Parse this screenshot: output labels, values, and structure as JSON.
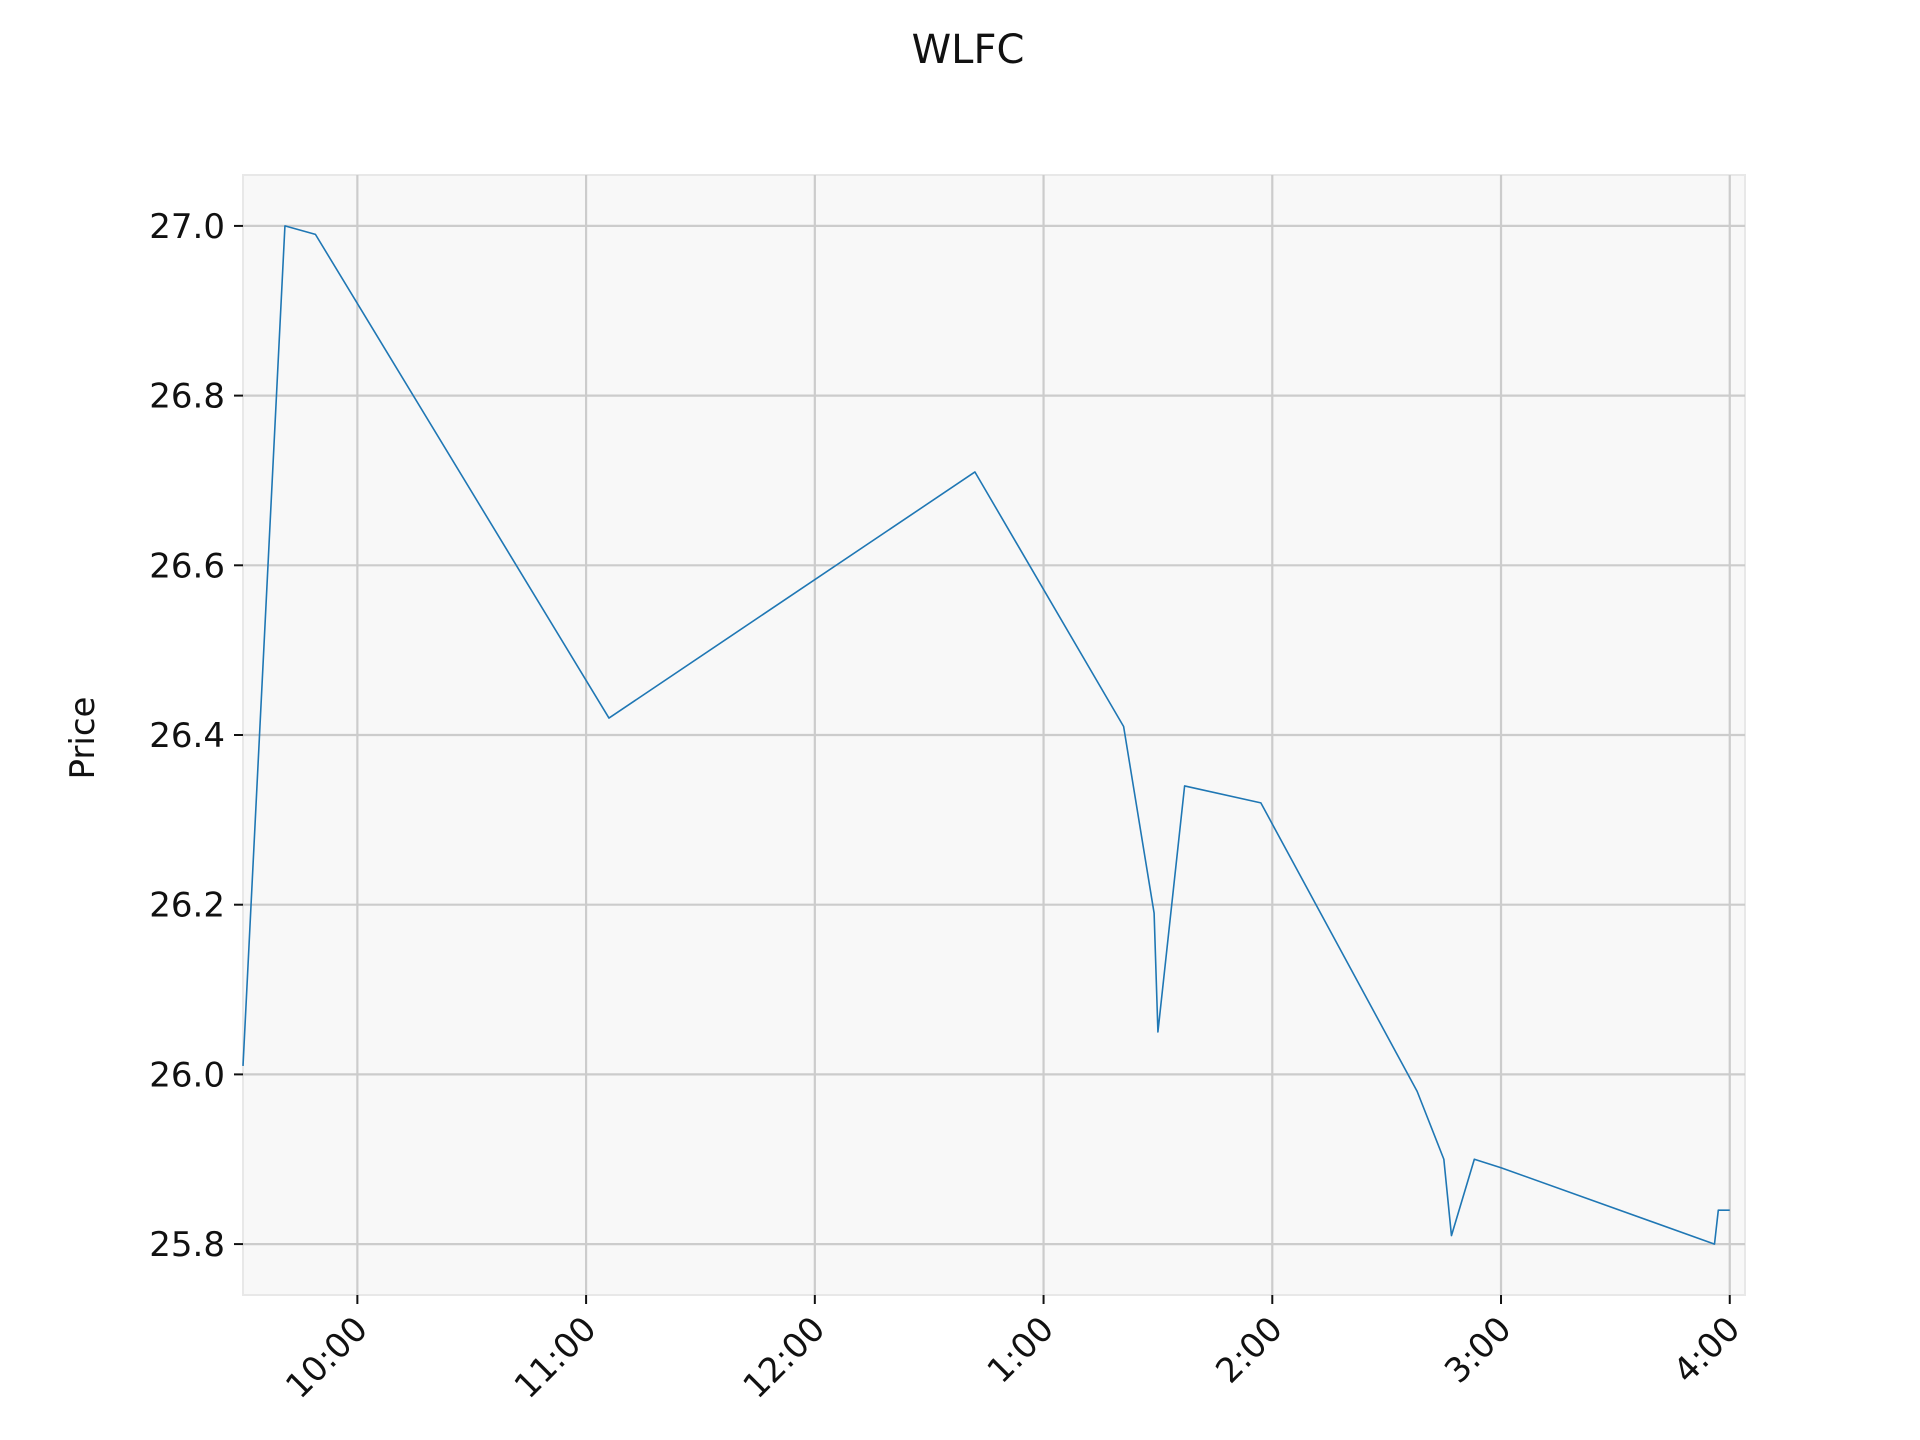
{
  "chart_data": {
    "type": "line",
    "title": "WLFC",
    "xlabel": "",
    "ylabel": "Price",
    "x_unit": "time of day",
    "xlim": [
      "09:30",
      "16:04"
    ],
    "ylim": [
      25.74,
      27.06
    ],
    "x_ticks": [
      {
        "time": "10:00",
        "label": "10:00"
      },
      {
        "time": "11:00",
        "label": "11:00"
      },
      {
        "time": "12:00",
        "label": "12:00"
      },
      {
        "time": "13:00",
        "label": "1:00"
      },
      {
        "time": "14:00",
        "label": "2:00"
      },
      {
        "time": "15:00",
        "label": "3:00"
      },
      {
        "time": "16:00",
        "label": "4:00"
      }
    ],
    "y_ticks": [
      {
        "value": 25.8,
        "label": "25.8"
      },
      {
        "value": 26.0,
        "label": "26.0"
      },
      {
        "value": 26.2,
        "label": "26.2"
      },
      {
        "value": 26.4,
        "label": "26.4"
      },
      {
        "value": 26.6,
        "label": "26.6"
      },
      {
        "value": 26.8,
        "label": "26.8"
      },
      {
        "value": 27.0,
        "label": "27.0"
      }
    ],
    "grid": true,
    "series": [
      {
        "color": "#1f77b4",
        "points": [
          {
            "x": "09:30",
            "y": 26.01
          },
          {
            "x": "09:41",
            "y": 27.0
          },
          {
            "x": "09:49",
            "y": 26.99
          },
          {
            "x": "11:06",
            "y": 26.42
          },
          {
            "x": "12:42",
            "y": 26.71
          },
          {
            "x": "13:21",
            "y": 26.41
          },
          {
            "x": "13:29",
            "y": 26.19
          },
          {
            "x": "13:30",
            "y": 26.05
          },
          {
            "x": "13:37",
            "y": 26.34
          },
          {
            "x": "13:57",
            "y": 26.32
          },
          {
            "x": "14:38",
            "y": 25.98
          },
          {
            "x": "14:45",
            "y": 25.9
          },
          {
            "x": "14:47",
            "y": 25.81
          },
          {
            "x": "14:53",
            "y": 25.9
          },
          {
            "x": "15:00",
            "y": 25.89
          },
          {
            "x": "15:56",
            "y": 25.8
          },
          {
            "x": "15:57",
            "y": 25.84
          },
          {
            "x": "16:00",
            "y": 25.84
          }
        ]
      }
    ]
  }
}
